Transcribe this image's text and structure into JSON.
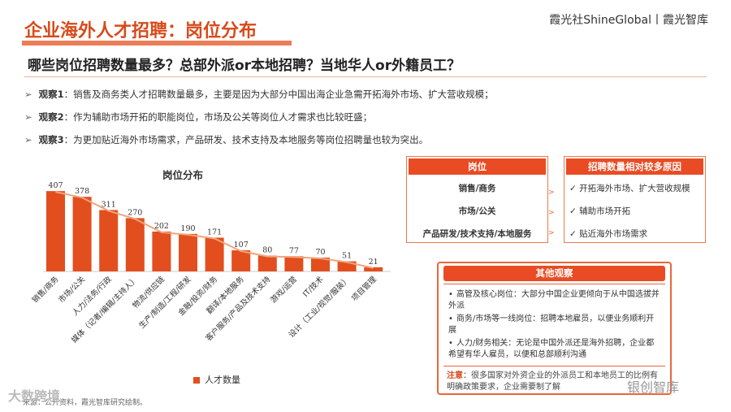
{
  "header": {
    "title": "企业海外人才招聘：岗位分布",
    "brand": "霞光社ShineGlobal丨霞光智库",
    "subtitle": "哪些岗位招聘数量最多？总部外派or本地招聘？当地华人or外籍员工？"
  },
  "observations": [
    {
      "key": "观察1",
      "text": "：销售及商务类人才招聘数量最多，主要是因为大部分中国出海企业急需开拓海外市场、扩大营收规模；"
    },
    {
      "key": "观察2",
      "text": "：作为辅助市场开拓的职能岗位，市场及公关等岗位人才需求也比较旺盛；"
    },
    {
      "key": "观察3",
      "text": "：为更加贴近海外市场需求，产品研发、技术支持及本地服务等岗位招聘量也较为突出。"
    }
  ],
  "chart_data": {
    "type": "bar",
    "title": "岗位分布",
    "categories": [
      "销售/商务",
      "市场/公关",
      "人力/法务/行政",
      "媒体（记者/编辑/主持人）",
      "物流/供应链",
      "生产/制造/工程/研发",
      "金融/投资/财务",
      "翻译/本地服务",
      "客户服务/产品及技术支持",
      "游戏/运营",
      "IT/技术",
      "设计（工业/视觉/服装）",
      "项目管理"
    ],
    "series": [
      {
        "name": "人才数量",
        "values": [
          407,
          378,
          311,
          270,
          202,
          190,
          171,
          107,
          80,
          77,
          70,
          51,
          21
        ]
      }
    ],
    "ylim": [
      0,
      420
    ],
    "bar_color": "#e34e1e",
    "line_color": "#f0a57a",
    "legend": "bottom"
  },
  "table": {
    "col1_header": "岗位",
    "col2_header": "招聘数量相对较多原因",
    "rows": [
      {
        "role": "销售/商务",
        "reason": "开拓海外市场、扩大营收规模"
      },
      {
        "role": "市场/公关",
        "reason": "辅助市场开拓"
      },
      {
        "role": "产品研发/技术支持/本地服务",
        "reason": "贴近海外市场需求"
      }
    ],
    "check": "✓"
  },
  "notes": {
    "header": "其他观察",
    "items": [
      "高管及核心岗位：大部分中国企业更倾向于从中国选拔并外派",
      "商务/市场等一线岗位：招聘本地雇员，以便业务顺利开展",
      "人力/财务相关：无论是中国外派还是海外招聘，企业都希望有华人雇员，以便和总部顺利沟通"
    ],
    "foot_key": "注意",
    "foot_text": "：很多国家对外资企业的外派员工和本地员工的比例有明确政策要求，企业需要制了解"
  },
  "source": "来源：公开资料，霞光智库研究绘制。",
  "watermarks": [
    "大数跨境",
    "银创智库"
  ],
  "colors": {
    "accent": "#e94c24",
    "title": "#d84a1b"
  }
}
